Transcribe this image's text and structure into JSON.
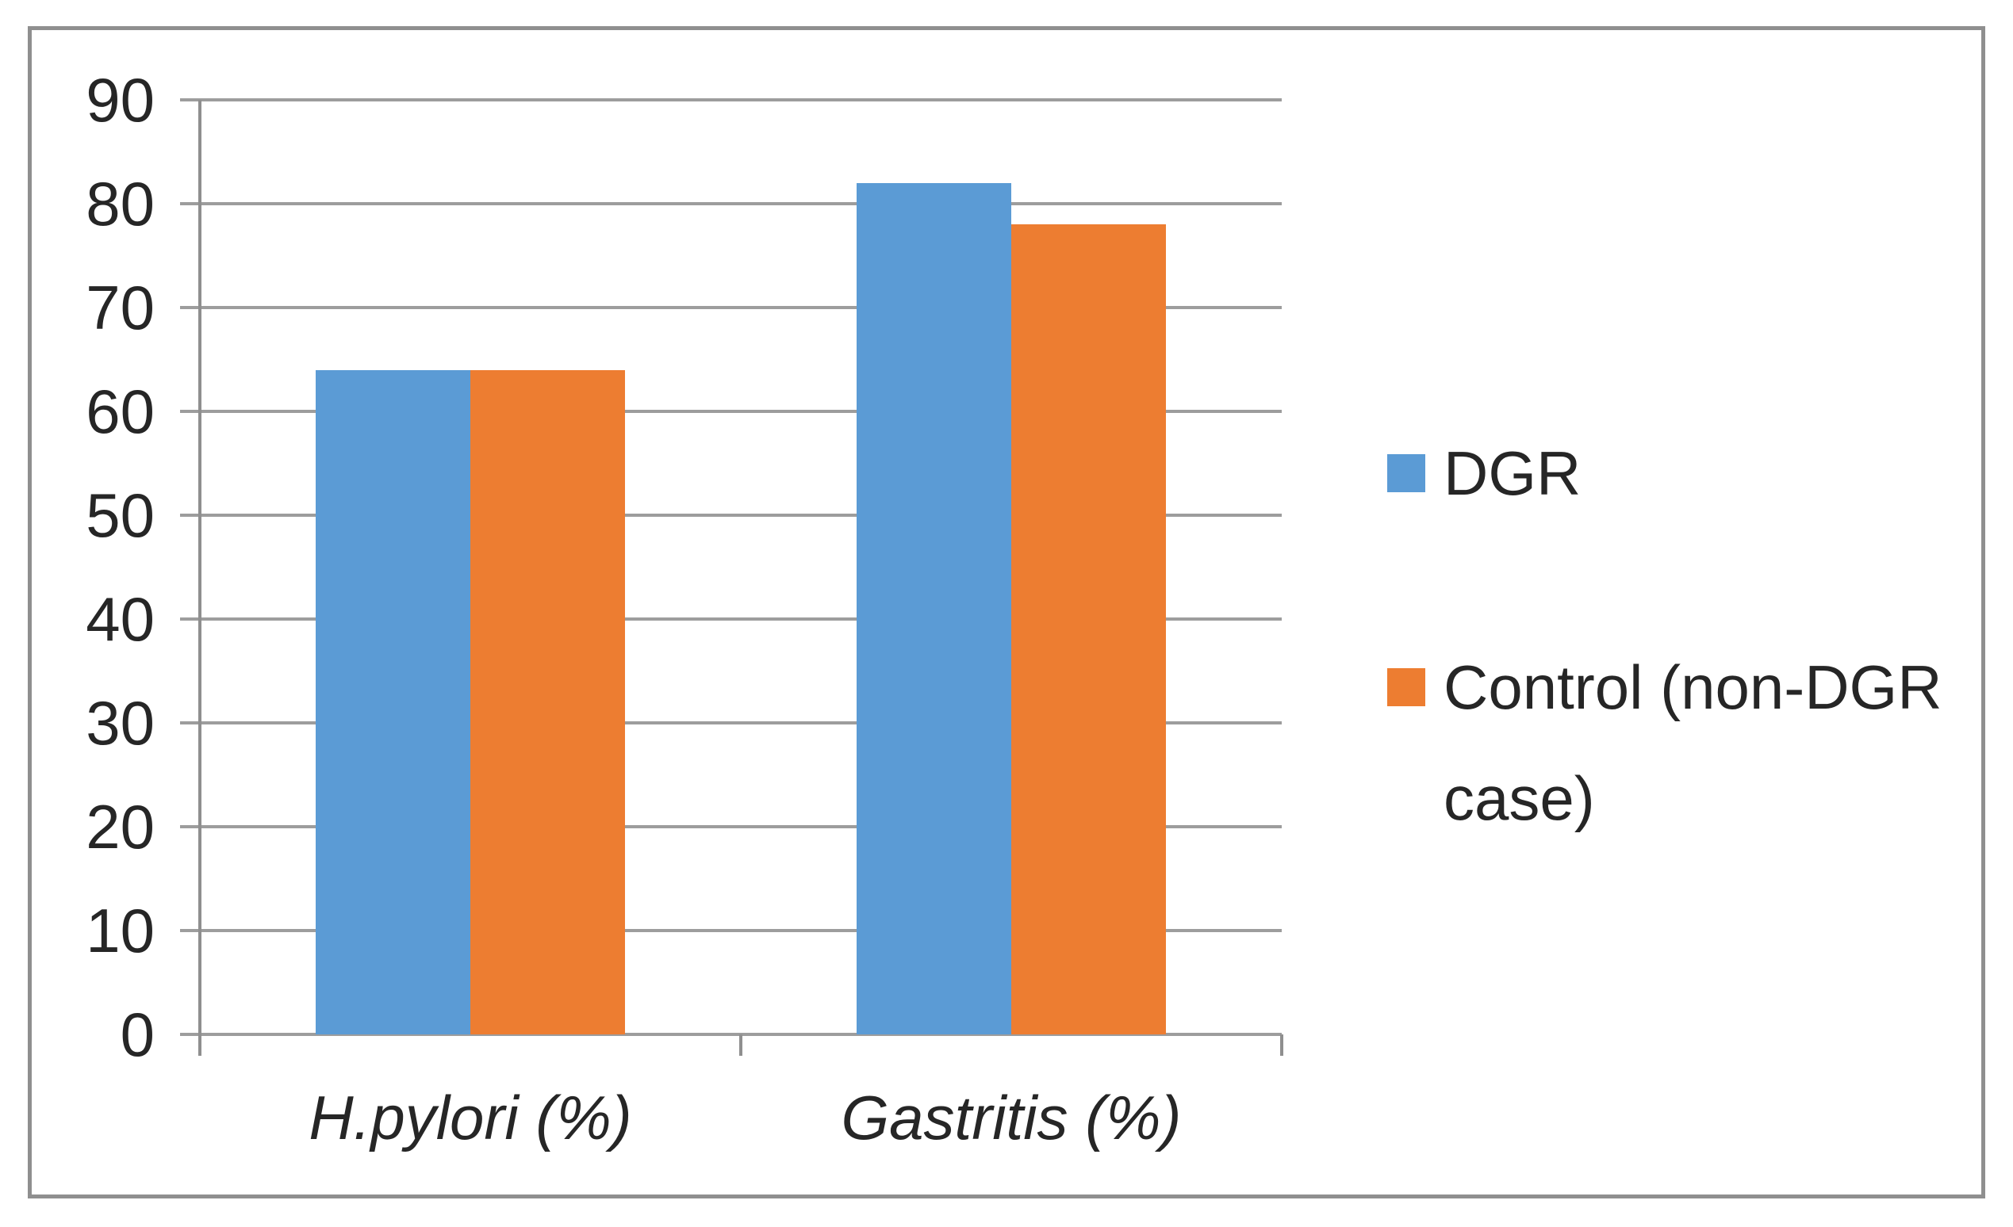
{
  "chart_data": {
    "type": "bar",
    "title": "",
    "xlabel": "",
    "ylabel": "",
    "categories": [
      "H.pylori (%)",
      "Gastritis (%)"
    ],
    "series": [
      {
        "name": "DGR",
        "color": "#5B9BD5",
        "values": [
          64,
          82
        ]
      },
      {
        "name": "Control (non-DGR case)",
        "color": "#ED7D31",
        "values": [
          64,
          78
        ]
      }
    ],
    "ylim": [
      0,
      90
    ],
    "yticks": [
      0,
      10,
      20,
      30,
      40,
      50,
      60,
      70,
      80,
      90
    ],
    "grid": true,
    "legend_position": "right"
  },
  "colors": {
    "series_blue": "#5B9BD5",
    "series_orange": "#ED7D31",
    "gridline": "#9D9D9D",
    "axis_line": "#8F8F8F",
    "frame_border": "#8F8F8F",
    "text": "#262626",
    "background": "#FFFFFF"
  }
}
